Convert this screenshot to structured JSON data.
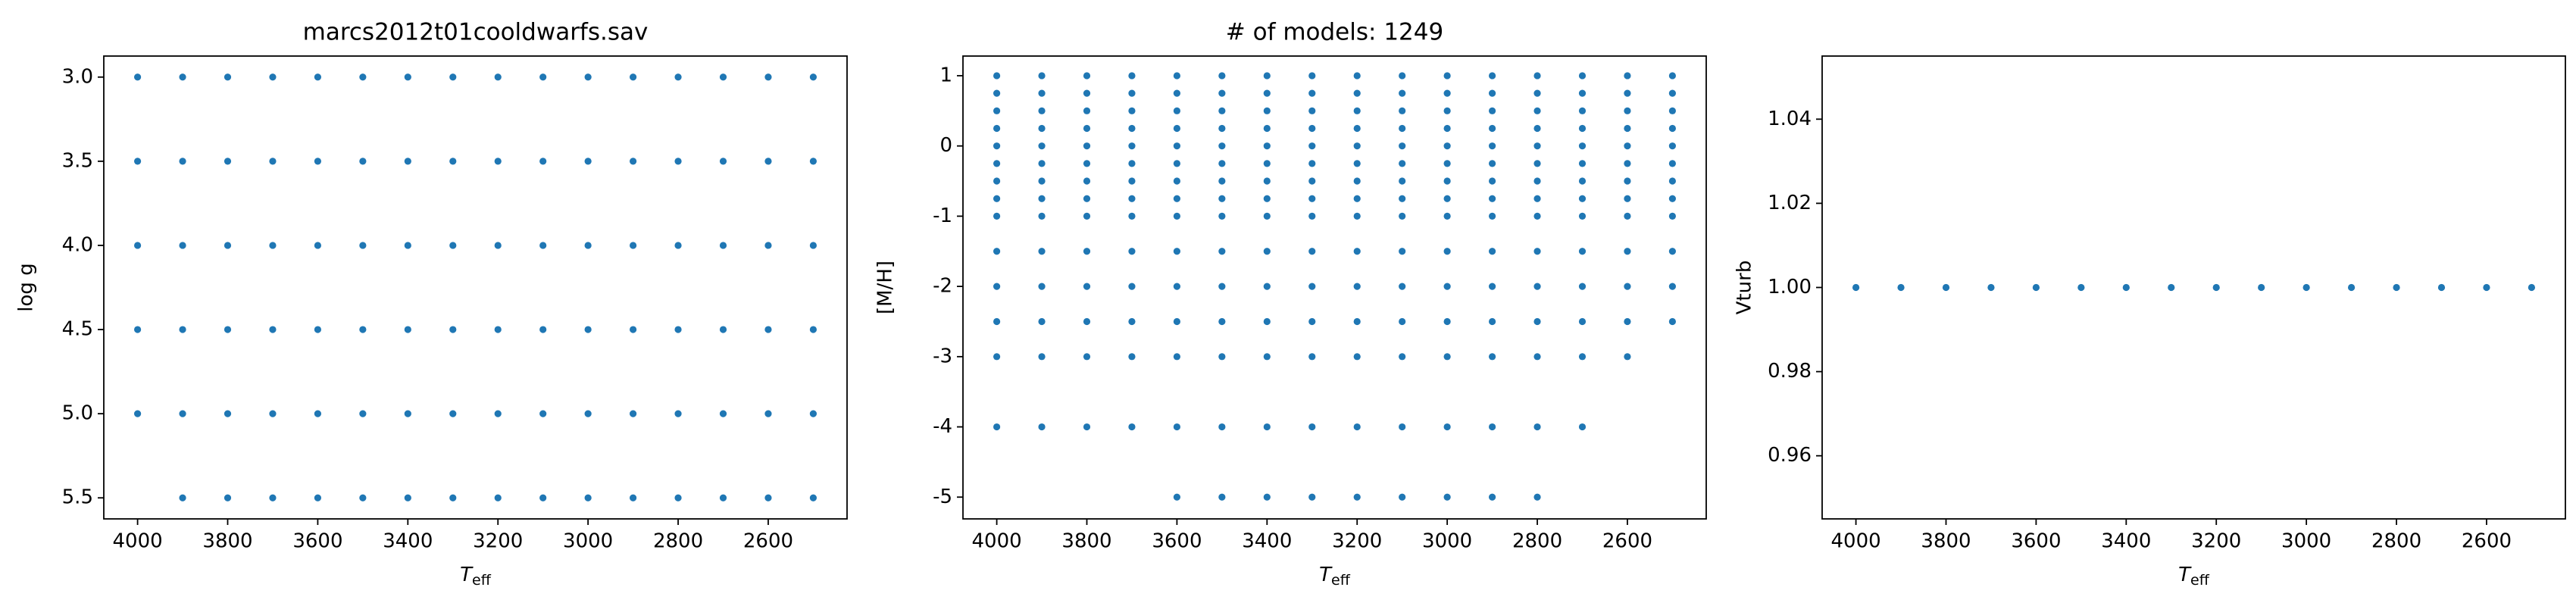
{
  "chart_data": [
    {
      "type": "scatter",
      "title": "marcs2012t01cooldwarfs.sav",
      "xlabel": "T",
      "xlabel_sub": "eff",
      "ylabel": "log g",
      "color": "#1f77b4",
      "x": [
        4000,
        3900,
        3800,
        3700,
        3600,
        3500,
        3400,
        3300,
        3200,
        3100,
        3000,
        2900,
        2800,
        2700,
        2600,
        2500,
        4000,
        3900,
        3800,
        3700,
        3600,
        3500,
        3400,
        3300,
        3200,
        3100,
        3000,
        2900,
        2800,
        2700,
        2600,
        2500,
        4000,
        3900,
        3800,
        3700,
        3600,
        3500,
        3400,
        3300,
        3200,
        3100,
        3000,
        2900,
        2800,
        2700,
        2600,
        2500,
        4000,
        3900,
        3800,
        3700,
        3600,
        3500,
        3400,
        3300,
        3200,
        3100,
        3000,
        2900,
        2800,
        2700,
        2600,
        2500,
        4000,
        3900,
        3800,
        3700,
        3600,
        3500,
        3400,
        3300,
        3200,
        3100,
        3000,
        2900,
        2800,
        2700,
        2600,
        2500,
        3900,
        3800,
        3700,
        3600,
        3500,
        3400,
        3300,
        3200,
        3100,
        3000,
        2900,
        2800,
        2700,
        2600,
        2500
      ],
      "y": [
        3,
        3,
        3,
        3,
        3,
        3,
        3,
        3,
        3,
        3,
        3,
        3,
        3,
        3,
        3,
        3,
        3.5,
        3.5,
        3.5,
        3.5,
        3.5,
        3.5,
        3.5,
        3.5,
        3.5,
        3.5,
        3.5,
        3.5,
        3.5,
        3.5,
        3.5,
        3.5,
        4,
        4,
        4,
        4,
        4,
        4,
        4,
        4,
        4,
        4,
        4,
        4,
        4,
        4,
        4,
        4,
        4.5,
        4.5,
        4.5,
        4.5,
        4.5,
        4.5,
        4.5,
        4.5,
        4.5,
        4.5,
        4.5,
        4.5,
        4.5,
        4.5,
        4.5,
        4.5,
        5,
        5,
        5,
        5,
        5,
        5,
        5,
        5,
        5,
        5,
        5,
        5,
        5,
        5,
        5,
        5,
        5.5,
        5.5,
        5.5,
        5.5,
        5.5,
        5.5,
        5.5,
        5.5,
        5.5,
        5.5,
        5.5,
        5.5,
        5.5,
        5.5,
        5.5
      ],
      "xlim": [
        4075,
        2425
      ],
      "xticks": [
        4000,
        3800,
        3600,
        3400,
        3200,
        3000,
        2800,
        2600
      ],
      "ylim": [
        5.625,
        2.875
      ],
      "yticks": [
        {
          "value": 3,
          "label": "3.0"
        },
        3.5,
        {
          "value": 4,
          "label": "4.0"
        },
        4.5,
        {
          "value": 5,
          "label": "5.0"
        },
        5.5
      ]
    },
    {
      "type": "scatter",
      "title": "# of models: 1249",
      "xlabel": "T",
      "xlabel_sub": "eff",
      "ylabel": "[M/H]",
      "color": "#1f77b4",
      "x": [
        4000,
        3900,
        3800,
        3700,
        3600,
        3500,
        3400,
        3300,
        3200,
        3100,
        3000,
        2900,
        2800,
        2700,
        2600,
        2500,
        4000,
        3900,
        3800,
        3700,
        3600,
        3500,
        3400,
        3300,
        3200,
        3100,
        3000,
        2900,
        2800,
        2700,
        2600,
        2500,
        4000,
        3900,
        3800,
        3700,
        3600,
        3500,
        3400,
        3300,
        3200,
        3100,
        3000,
        2900,
        2800,
        2700,
        2600,
        2500,
        4000,
        3900,
        3800,
        3700,
        3600,
        3500,
        3400,
        3300,
        3200,
        3100,
        3000,
        2900,
        2800,
        2700,
        2600,
        2500,
        4000,
        3900,
        3800,
        3700,
        3600,
        3500,
        3400,
        3300,
        3200,
        3100,
        3000,
        2900,
        2800,
        2700,
        2600,
        2500,
        4000,
        3900,
        3800,
        3700,
        3600,
        3500,
        3400,
        3300,
        3200,
        3100,
        3000,
        2900,
        2800,
        2700,
        2600,
        2500,
        4000,
        3900,
        3800,
        3700,
        3600,
        3500,
        3400,
        3300,
        3200,
        3100,
        3000,
        2900,
        2800,
        2700,
        2600,
        2500,
        4000,
        3900,
        3800,
        3700,
        3600,
        3500,
        3400,
        3300,
        3200,
        3100,
        3000,
        2900,
        2800,
        2700,
        2600,
        2500,
        4000,
        3900,
        3800,
        3700,
        3600,
        3500,
        3400,
        3300,
        3200,
        3100,
        3000,
        2900,
        2800,
        2700,
        2600,
        2500,
        4000,
        3900,
        3800,
        3700,
        3600,
        3500,
        3400,
        3300,
        3200,
        3100,
        3000,
        2900,
        2800,
        2700,
        2600,
        2500,
        4000,
        3900,
        3800,
        3700,
        3600,
        3500,
        3400,
        3300,
        3200,
        3100,
        3000,
        2900,
        2800,
        2700,
        2600,
        2500,
        4000,
        3900,
        3800,
        3700,
        3600,
        3500,
        3400,
        3300,
        3200,
        3100,
        3000,
        2900,
        2800,
        2700,
        2600,
        2500,
        4000,
        3900,
        3800,
        3700,
        3600,
        3500,
        3400,
        3300,
        3200,
        3100,
        3000,
        2900,
        2800,
        2700,
        2600,
        4000,
        3900,
        3800,
        3700,
        3600,
        3500,
        3400,
        3300,
        3200,
        3100,
        3000,
        2900,
        2800,
        2700,
        3600,
        3500,
        3400,
        3300,
        3200,
        3100,
        3000,
        2900,
        2800
      ],
      "y": [
        1,
        1,
        1,
        1,
        1,
        1,
        1,
        1,
        1,
        1,
        1,
        1,
        1,
        1,
        1,
        1,
        0.75,
        0.75,
        0.75,
        0.75,
        0.75,
        0.75,
        0.75,
        0.75,
        0.75,
        0.75,
        0.75,
        0.75,
        0.75,
        0.75,
        0.75,
        0.75,
        0.5,
        0.5,
        0.5,
        0.5,
        0.5,
        0.5,
        0.5,
        0.5,
        0.5,
        0.5,
        0.5,
        0.5,
        0.5,
        0.5,
        0.5,
        0.5,
        0.25,
        0.25,
        0.25,
        0.25,
        0.25,
        0.25,
        0.25,
        0.25,
        0.25,
        0.25,
        0.25,
        0.25,
        0.25,
        0.25,
        0.25,
        0.25,
        0,
        0,
        0,
        0,
        0,
        0,
        0,
        0,
        0,
        0,
        0,
        0,
        0,
        0,
        0,
        0,
        -0.25,
        -0.25,
        -0.25,
        -0.25,
        -0.25,
        -0.25,
        -0.25,
        -0.25,
        -0.25,
        -0.25,
        -0.25,
        -0.25,
        -0.25,
        -0.25,
        -0.25,
        -0.25,
        -0.5,
        -0.5,
        -0.5,
        -0.5,
        -0.5,
        -0.5,
        -0.5,
        -0.5,
        -0.5,
        -0.5,
        -0.5,
        -0.5,
        -0.5,
        -0.5,
        -0.5,
        -0.5,
        -0.75,
        -0.75,
        -0.75,
        -0.75,
        -0.75,
        -0.75,
        -0.75,
        -0.75,
        -0.75,
        -0.75,
        -0.75,
        -0.75,
        -0.75,
        -0.75,
        -0.75,
        -0.75,
        -1,
        -1,
        -1,
        -1,
        -1,
        -1,
        -1,
        -1,
        -1,
        -1,
        -1,
        -1,
        -1,
        -1,
        -1,
        -1,
        -1.5,
        -1.5,
        -1.5,
        -1.5,
        -1.5,
        -1.5,
        -1.5,
        -1.5,
        -1.5,
        -1.5,
        -1.5,
        -1.5,
        -1.5,
        -1.5,
        -1.5,
        -1.5,
        -2,
        -2,
        -2,
        -2,
        -2,
        -2,
        -2,
        -2,
        -2,
        -2,
        -2,
        -2,
        -2,
        -2,
        -2,
        -2,
        -2.5,
        -2.5,
        -2.5,
        -2.5,
        -2.5,
        -2.5,
        -2.5,
        -2.5,
        -2.5,
        -2.5,
        -2.5,
        -2.5,
        -2.5,
        -2.5,
        -2.5,
        -2.5,
        -3,
        -3,
        -3,
        -3,
        -3,
        -3,
        -3,
        -3,
        -3,
        -3,
        -3,
        -3,
        -3,
        -3,
        -3,
        -4,
        -4,
        -4,
        -4,
        -4,
        -4,
        -4,
        -4,
        -4,
        -4,
        -4,
        -4,
        -4,
        -4,
        -5,
        -5,
        -5,
        -5,
        -5,
        -5,
        -5,
        -5,
        -5
      ],
      "xlim": [
        4075,
        2425
      ],
      "xticks": [
        4000,
        3800,
        3600,
        3400,
        3200,
        3000,
        2800,
        2600
      ],
      "ylim": [
        -5.31,
        1.28
      ],
      "yticks": [
        1,
        0,
        -1,
        -2,
        -3,
        -4,
        -5
      ]
    },
    {
      "type": "scatter",
      "xlabel": "T",
      "xlabel_sub": "eff",
      "ylabel": "Vturb",
      "color": "#1f77b4",
      "x": [
        4000,
        3900,
        3800,
        3700,
        3600,
        3500,
        3400,
        3300,
        3200,
        3100,
        3000,
        2900,
        2800,
        2700,
        2600,
        2500
      ],
      "y": [
        1,
        1,
        1,
        1,
        1,
        1,
        1,
        1,
        1,
        1,
        1,
        1,
        1,
        1,
        1,
        1
      ],
      "xlim": [
        4075,
        2425
      ],
      "xticks": [
        4000,
        3800,
        3600,
        3400,
        3200,
        3000,
        2800,
        2600
      ],
      "ylim": [
        0.945,
        1.055
      ],
      "yticks": [
        0.96,
        0.98,
        {
          "value": 1,
          "label": "1.00"
        },
        1.02,
        1.04
      ]
    }
  ]
}
